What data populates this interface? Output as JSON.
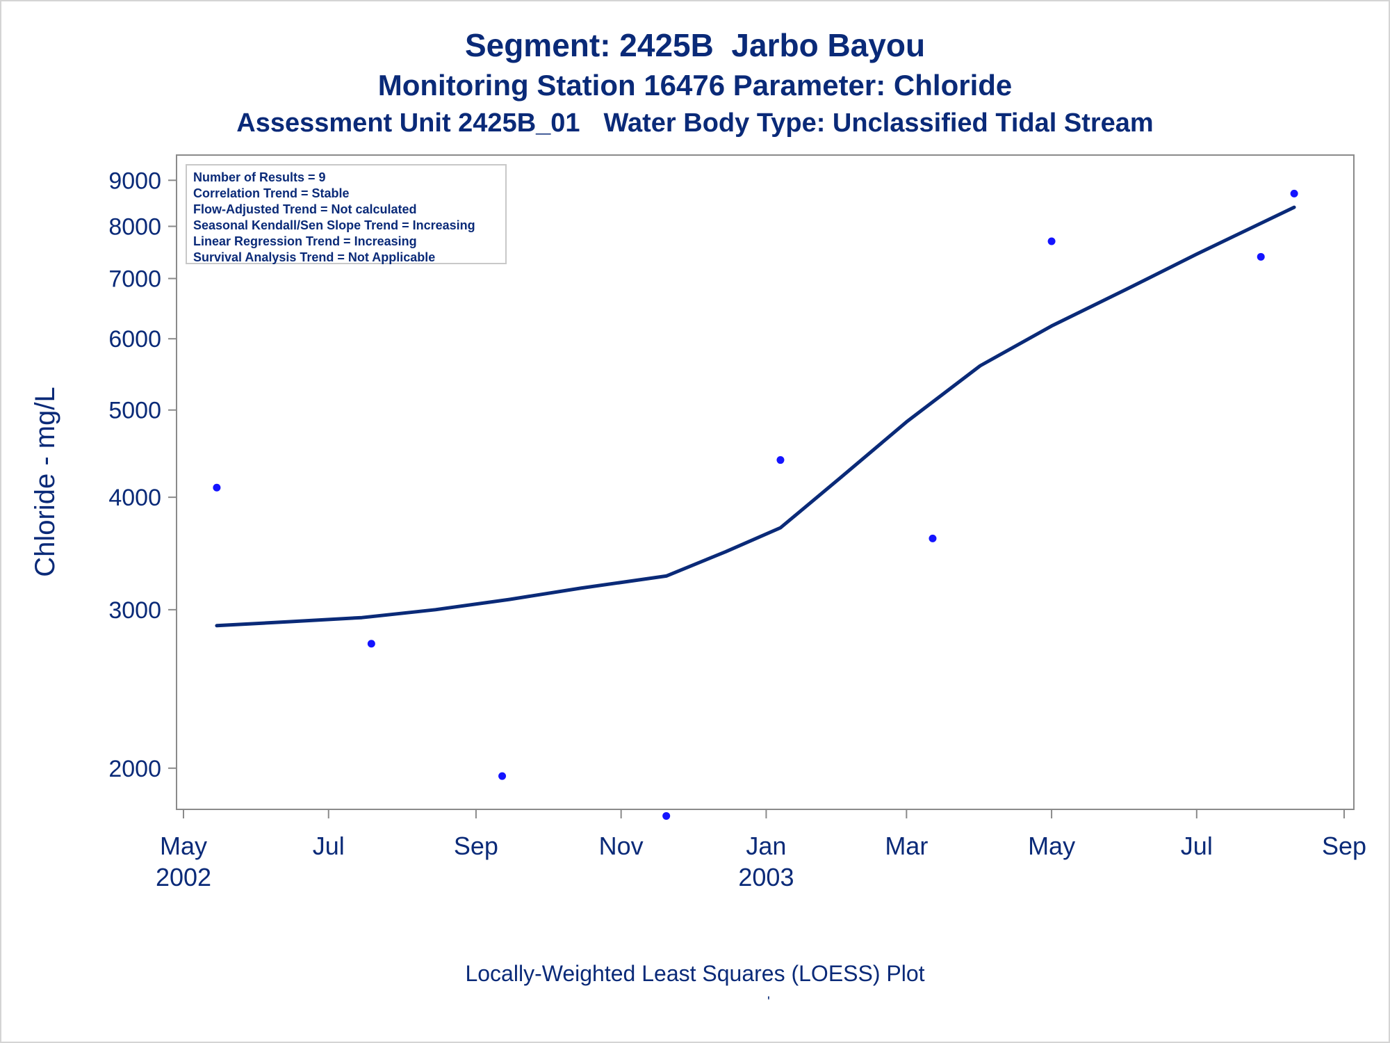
{
  "chart_data": {
    "type": "scatter",
    "title": "Segment: 2425B  Jarbo Bayou",
    "subtitle": "Monitoring Station 16476 Parameter: Chloride",
    "subtitle2_parts": [
      "Assessment Unit 2425B_01",
      "Water Body Type: Unclassified Tidal Stream"
    ],
    "ylabel": "Chloride - mg/L",
    "xlabel": "",
    "footnote": "Locally-Weighted Least Squares (LOESS) Plot",
    "footnote_mark": "'",
    "y_scale": "log",
    "ylim": [
      1800,
      9600
    ],
    "xlim": [
      "2002-05-01",
      "2003-09-01"
    ],
    "y_ticks": [
      2000,
      3000,
      4000,
      5000,
      6000,
      7000,
      8000,
      9000
    ],
    "y_tick_labels": [
      "2000",
      "3000",
      "4000",
      "5000",
      "6000",
      "7000",
      "8000",
      "9000"
    ],
    "x_ticks": [
      {
        "date": "2002-05-01",
        "label": "May",
        "year": "2002"
      },
      {
        "date": "2002-07-01",
        "label": "Jul",
        "year": ""
      },
      {
        "date": "2002-09-01",
        "label": "Sep",
        "year": ""
      },
      {
        "date": "2002-11-01",
        "label": "Nov",
        "year": ""
      },
      {
        "date": "2003-01-01",
        "label": "Jan",
        "year": "2003"
      },
      {
        "date": "2003-03-01",
        "label": "Mar",
        "year": ""
      },
      {
        "date": "2003-05-01",
        "label": "May",
        "year": ""
      },
      {
        "date": "2003-07-01",
        "label": "Jul",
        "year": ""
      },
      {
        "date": "2003-09-01",
        "label": "Sep",
        "year": ""
      }
    ],
    "series": [
      {
        "kind": "points",
        "color": "#1414ff",
        "points": [
          {
            "x": "2002-05-15",
            "y": 4100
          },
          {
            "x": "2002-07-19",
            "y": 2750
          },
          {
            "x": "2002-09-12",
            "y": 1960
          },
          {
            "x": "2002-11-20",
            "y": 1770
          },
          {
            "x": "2003-01-07",
            "y": 4400
          },
          {
            "x": "2003-03-12",
            "y": 3600
          },
          {
            "x": "2003-05-01",
            "y": 7700
          },
          {
            "x": "2003-07-28",
            "y": 7400
          },
          {
            "x": "2003-08-11",
            "y": 8700
          }
        ]
      },
      {
        "kind": "line",
        "color": "#0a2a78",
        "points": [
          {
            "x": "2002-05-15",
            "y": 2880
          },
          {
            "x": "2002-06-15",
            "y": 2910
          },
          {
            "x": "2002-07-15",
            "y": 2940
          },
          {
            "x": "2002-08-15",
            "y": 3000
          },
          {
            "x": "2002-09-15",
            "y": 3080
          },
          {
            "x": "2002-10-15",
            "y": 3170
          },
          {
            "x": "2002-11-20",
            "y": 3270
          },
          {
            "x": "2002-12-15",
            "y": 3480
          },
          {
            "x": "2003-01-07",
            "y": 3700
          },
          {
            "x": "2003-02-01",
            "y": 4200
          },
          {
            "x": "2003-03-01",
            "y": 4850
          },
          {
            "x": "2003-04-01",
            "y": 5600
          },
          {
            "x": "2003-05-01",
            "y": 6200
          },
          {
            "x": "2003-06-01",
            "y": 6800
          },
          {
            "x": "2003-07-01",
            "y": 7450
          },
          {
            "x": "2003-08-11",
            "y": 8400
          }
        ]
      }
    ],
    "legend_lines": [
      "Number of Results = 9",
      "Correlation Trend = Stable",
      "Flow-Adjusted Trend = Not calculated",
      "Seasonal Kendall/Sen Slope Trend = Increasing",
      "Linear Regression Trend = Increasing",
      "Survival Analysis Trend = Not Applicable"
    ],
    "legend_placement": "top-left",
    "grid": false
  }
}
